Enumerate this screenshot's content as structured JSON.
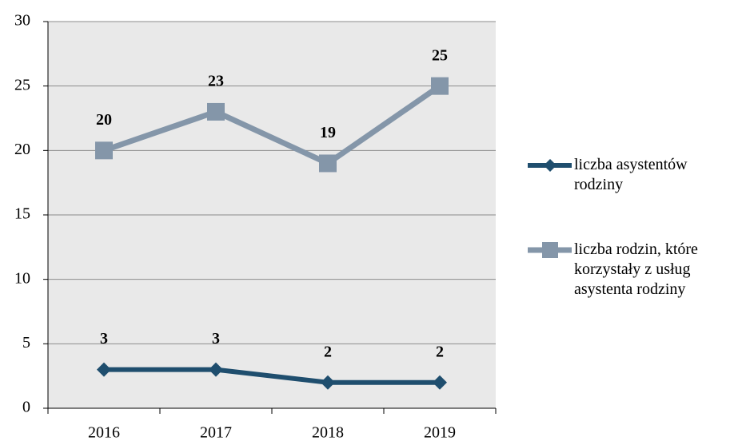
{
  "chart_data": {
    "type": "line",
    "categories": [
      "2016",
      "2017",
      "2018",
      "2019"
    ],
    "series": [
      {
        "name": "liczba asystentów rodziny",
        "color": "#1f4e6e",
        "marker": "diamond",
        "values": [
          3,
          3,
          2,
          2
        ]
      },
      {
        "name": "liczba rodzin, które korzystały z usług asystenta rodziny",
        "color": "#8496a9",
        "marker": "square",
        "values": [
          20,
          23,
          19,
          25
        ]
      }
    ],
    "ylim": [
      0,
      30
    ],
    "yticks": [
      0,
      5,
      10,
      15,
      20,
      25,
      30
    ],
    "grid": true,
    "legend": "right"
  }
}
